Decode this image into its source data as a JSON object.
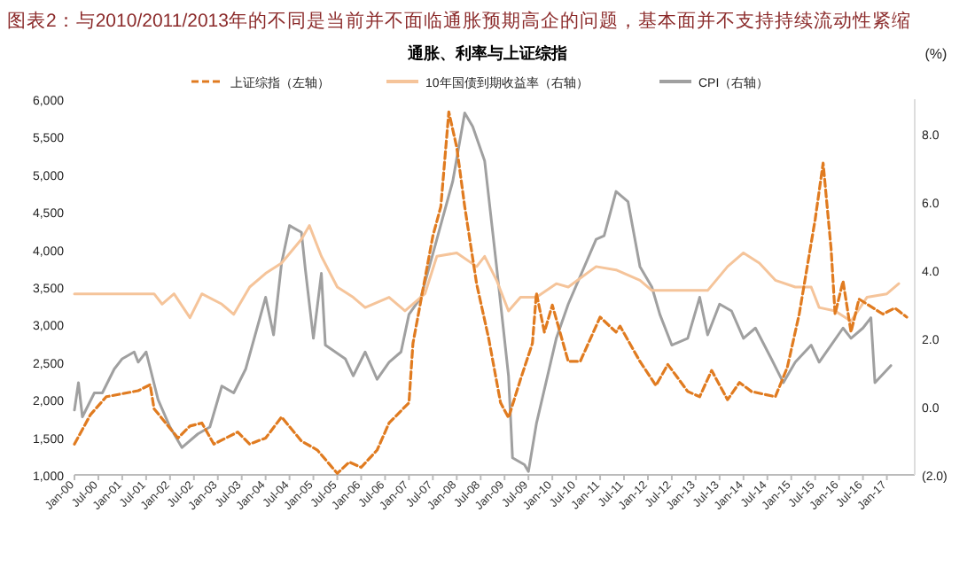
{
  "chart_data": {
    "type": "line",
    "title": "图表2：与2010/2011/2013年的不同是当前并不面临通胀预期高企的问题，基本面并不支持持续流动性紧缩",
    "subtitle": "通胀、利率与上证综指",
    "y2label": "(%)",
    "legend": "top",
    "xlim": [
      "2000-01",
      "2017-08"
    ],
    "xticks": [
      {
        "value": "2000-01",
        "label": "Jan-00"
      },
      {
        "value": "2000-07",
        "label": "Jul-00"
      },
      {
        "value": "2001-01",
        "label": "Jan-01"
      },
      {
        "value": "2001-07",
        "label": "Jul-01"
      },
      {
        "value": "2002-01",
        "label": "Jan-02"
      },
      {
        "value": "2002-07",
        "label": "Jul-02"
      },
      {
        "value": "2003-01",
        "label": "Jan-03"
      },
      {
        "value": "2003-07",
        "label": "Jul-03"
      },
      {
        "value": "2004-01",
        "label": "Jan-04"
      },
      {
        "value": "2004-07",
        "label": "Jul-04"
      },
      {
        "value": "2005-01",
        "label": "Jan-05"
      },
      {
        "value": "2005-07",
        "label": "Jul-05"
      },
      {
        "value": "2006-01",
        "label": "Jan-06"
      },
      {
        "value": "2006-07",
        "label": "Jul-06"
      },
      {
        "value": "2007-01",
        "label": "Jan-07"
      },
      {
        "value": "2007-07",
        "label": "Jul-07"
      },
      {
        "value": "2008-01",
        "label": "Jan-08"
      },
      {
        "value": "2008-07",
        "label": "Jul-08"
      },
      {
        "value": "2009-01",
        "label": "Jan-09"
      },
      {
        "value": "2009-07",
        "label": "Jul-09"
      },
      {
        "value": "2010-01",
        "label": "Jan-10"
      },
      {
        "value": "2010-07",
        "label": "Jul-10"
      },
      {
        "value": "2011-01",
        "label": "Jan-11"
      },
      {
        "value": "2011-07",
        "label": "Jul-11"
      },
      {
        "value": "2012-01",
        "label": "Jan-12"
      },
      {
        "value": "2012-07",
        "label": "Jul-12"
      },
      {
        "value": "2013-01",
        "label": "Jan-13"
      },
      {
        "value": "2013-07",
        "label": "Jul-13"
      },
      {
        "value": "2014-01",
        "label": "Jan-14"
      },
      {
        "value": "2014-07",
        "label": "Jul-14"
      },
      {
        "value": "2015-01",
        "label": "Jan-15"
      },
      {
        "value": "2015-07",
        "label": "Jul-15"
      },
      {
        "value": "2016-01",
        "label": "Jan-16"
      },
      {
        "value": "2016-07",
        "label": "Jul-16"
      },
      {
        "value": "2017-01",
        "label": "Jan-17"
      }
    ],
    "ylim": [
      1000,
      6000
    ],
    "yticks": [
      {
        "value": 1000,
        "label": "1,000"
      },
      {
        "value": 1500,
        "label": "1,500"
      },
      {
        "value": 2000,
        "label": "2,000"
      },
      {
        "value": 2500,
        "label": "2,500"
      },
      {
        "value": 3000,
        "label": "3,000"
      },
      {
        "value": 3500,
        "label": "3,500"
      },
      {
        "value": 4000,
        "label": "4,000"
      },
      {
        "value": 4500,
        "label": "4,500"
      },
      {
        "value": 5000,
        "label": "5,000"
      },
      {
        "value": 5500,
        "label": "5,500"
      },
      {
        "value": 6000,
        "label": "6,000"
      }
    ],
    "y2lim": [
      -2,
      9
    ],
    "y2ticks": [
      {
        "value": -2,
        "label": "(2.0)"
      },
      {
        "value": 0,
        "label": "0.0"
      },
      {
        "value": 2,
        "label": "2.0"
      },
      {
        "value": 4,
        "label": "4.0"
      },
      {
        "value": 6,
        "label": "6.0"
      },
      {
        "value": 8,
        "label": "8.0"
      }
    ],
    "series": [
      {
        "name": "上证综指（左轴）",
        "color": "#e07b20",
        "line_style": "dashed",
        "x": [
          "2000-01",
          "2000-05",
          "2000-09",
          "2001-05",
          "2001-08",
          "2001-09",
          "2002-03",
          "2002-06",
          "2002-09",
          "2002-12",
          "2003-06",
          "2003-09",
          "2004-01",
          "2004-05",
          "2004-10",
          "2005-02",
          "2005-07",
          "2005-10",
          "2006-01",
          "2006-05",
          "2006-08",
          "2007-01",
          "2007-02",
          "2007-07",
          "2007-09",
          "2007-11",
          "2008-01",
          "2008-03",
          "2008-06",
          "2008-09",
          "2008-12",
          "2009-02",
          "2009-05",
          "2009-08",
          "2009-09",
          "2009-11",
          "2010-01",
          "2010-05",
          "2010-08",
          "2011-01",
          "2011-05",
          "2011-06",
          "2011-11",
          "2012-03",
          "2012-06",
          "2012-11",
          "2013-02",
          "2013-05",
          "2013-09",
          "2013-12",
          "2014-03",
          "2014-09",
          "2014-12",
          "2015-03",
          "2015-07",
          "2015-09",
          "2015-11",
          "2015-12",
          "2016-02",
          "2016-04",
          "2016-06",
          "2016-12",
          "2017-03",
          "2017-06"
        ],
        "values": [
          1410,
          1800,
          2040,
          2120,
          2200,
          1880,
          1490,
          1650,
          1690,
          1410,
          1570,
          1410,
          1490,
          1770,
          1450,
          1330,
          1020,
          1170,
          1100,
          1330,
          1690,
          1960,
          2750,
          4180,
          4570,
          5830,
          5360,
          4570,
          3540,
          2820,
          1960,
          1760,
          2270,
          2750,
          3420,
          2900,
          3260,
          2510,
          2510,
          3100,
          2900,
          2980,
          2510,
          2190,
          2470,
          2110,
          2040,
          2390,
          2000,
          2230,
          2110,
          2040,
          2430,
          3140,
          4400,
          5150,
          4010,
          3140,
          3580,
          2900,
          3340,
          3140,
          3220,
          3100
        ]
      },
      {
        "name": "10年国债到期收益率（右轴）",
        "color": "#f5c49a",
        "line_style": "solid",
        "axis": "y2",
        "x": [
          "2000-01",
          "2001-09",
          "2001-11",
          "2002-02",
          "2002-06",
          "2002-09",
          "2003-02",
          "2003-05",
          "2003-09",
          "2004-01",
          "2004-05",
          "2004-10",
          "2004-12",
          "2005-03",
          "2005-07",
          "2005-11",
          "2006-02",
          "2006-08",
          "2006-12",
          "2007-05",
          "2007-08",
          "2008-01",
          "2008-06",
          "2008-08",
          "2008-11",
          "2009-02",
          "2009-05",
          "2009-09",
          "2010-02",
          "2010-05",
          "2010-12",
          "2011-05",
          "2011-11",
          "2012-02",
          "2012-07",
          "2013-04",
          "2013-09",
          "2014-01",
          "2014-05",
          "2014-09",
          "2015-02",
          "2015-06",
          "2015-08",
          "2015-12",
          "2016-04",
          "2016-08",
          "2017-01",
          "2017-04"
        ],
        "values": [
          3.3,
          3.3,
          3.0,
          3.3,
          2.6,
          3.3,
          3.0,
          2.7,
          3.5,
          3.9,
          4.2,
          4.9,
          5.3,
          4.4,
          3.5,
          3.2,
          2.9,
          3.2,
          2.8,
          3.3,
          4.4,
          4.5,
          4.1,
          4.4,
          3.7,
          2.8,
          3.2,
          3.2,
          3.6,
          3.5,
          4.1,
          4.0,
          3.7,
          3.4,
          3.4,
          3.4,
          4.1,
          4.5,
          4.2,
          3.7,
          3.5,
          3.5,
          2.9,
          2.8,
          2.5,
          3.2,
          3.3,
          3.6
        ]
      },
      {
        "name": "CPI（右轴）",
        "color": "#a0a0a0",
        "line_style": "solid",
        "axis": "y2",
        "x": [
          "2000-01",
          "2000-02",
          "2000-03",
          "2000-06",
          "2000-08",
          "2000-11",
          "2001-01",
          "2001-04",
          "2001-05",
          "2001-07",
          "2001-10",
          "2002-01",
          "2002-04",
          "2002-08",
          "2002-11",
          "2003-02",
          "2003-05",
          "2003-08",
          "2004-01",
          "2004-03",
          "2004-05",
          "2004-07",
          "2004-10",
          "2004-11",
          "2005-01",
          "2005-03",
          "2005-04",
          "2005-09",
          "2005-11",
          "2006-02",
          "2006-05",
          "2006-08",
          "2006-11",
          "2007-01",
          "2007-04",
          "2007-08",
          "2007-12",
          "2008-03",
          "2008-05",
          "2008-08",
          "2008-11",
          "2009-02",
          "2009-03",
          "2009-06",
          "2009-07",
          "2009-09",
          "2010-02",
          "2010-05",
          "2010-12",
          "2011-02",
          "2011-05",
          "2011-08",
          "2011-11",
          "2012-02",
          "2012-04",
          "2012-07",
          "2012-11",
          "2013-02",
          "2013-04",
          "2013-07",
          "2013-10",
          "2014-01",
          "2014-04",
          "2014-08",
          "2014-11",
          "2015-02",
          "2015-06",
          "2015-08",
          "2015-11",
          "2016-02",
          "2016-04",
          "2016-07",
          "2016-09",
          "2016-10",
          "2017-02"
        ],
        "values": [
          -0.1,
          0.7,
          -0.3,
          0.4,
          0.4,
          1.1,
          1.4,
          1.6,
          1.3,
          1.6,
          0.2,
          -0.6,
          -1.2,
          -0.8,
          -0.6,
          0.6,
          0.4,
          1.1,
          3.2,
          2.1,
          4.2,
          5.3,
          5.1,
          4.0,
          2.0,
          3.9,
          1.8,
          1.4,
          0.9,
          1.6,
          0.8,
          1.3,
          1.6,
          2.7,
          3.2,
          4.9,
          6.6,
          8.6,
          8.2,
          7.2,
          4.1,
          0.9,
          -1.5,
          -1.7,
          -1.9,
          -0.5,
          2.0,
          3.0,
          4.9,
          5.0,
          6.3,
          6.0,
          4.1,
          3.5,
          2.7,
          1.8,
          2.0,
          3.2,
          2.1,
          3.0,
          2.8,
          2.0,
          2.3,
          1.4,
          0.7,
          1.3,
          1.8,
          1.3,
          1.8,
          2.3,
          2.0,
          2.3,
          2.6,
          0.7,
          1.2
        ]
      }
    ]
  }
}
